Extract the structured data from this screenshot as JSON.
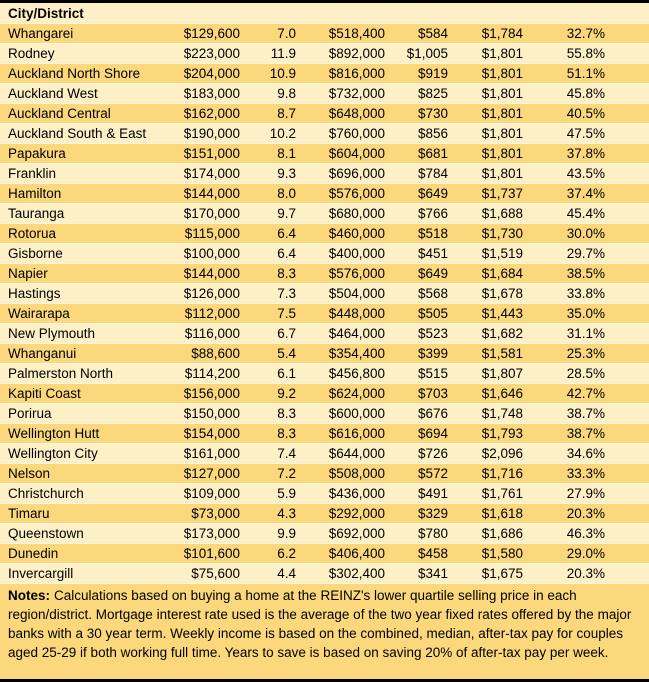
{
  "colors": {
    "row_gold": "#FBD87B",
    "row_cream": "#FDF0C6",
    "row_separator": "#FEF6DC",
    "border": "#000000",
    "text": "#000000"
  },
  "chart_data": {
    "type": "table",
    "title": "",
    "header": [
      "City/District",
      "",
      "",
      "",
      "",
      "",
      ""
    ],
    "rows": [
      [
        "Whangarei",
        "$129,600",
        "7.0",
        "$518,400",
        "$584",
        "$1,784",
        "32.7%"
      ],
      [
        "Rodney",
        "$223,000",
        "11.9",
        "$892,000",
        "$1,005",
        "$1,801",
        "55.8%"
      ],
      [
        "Auckland North Shore",
        "$204,000",
        "10.9",
        "$816,000",
        "$919",
        "$1,801",
        "51.1%"
      ],
      [
        "Auckland West",
        "$183,000",
        "9.8",
        "$732,000",
        "$825",
        "$1,801",
        "45.8%"
      ],
      [
        "Auckland Central",
        "$162,000",
        "8.7",
        "$648,000",
        "$730",
        "$1,801",
        "40.5%"
      ],
      [
        "Auckland South & East",
        "$190,000",
        "10.2",
        "$760,000",
        "$856",
        "$1,801",
        "47.5%"
      ],
      [
        "Papakura",
        "$151,000",
        "8.1",
        "$604,000",
        "$681",
        "$1,801",
        "37.8%"
      ],
      [
        "Franklin",
        "$174,000",
        "9.3",
        "$696,000",
        "$784",
        "$1,801",
        "43.5%"
      ],
      [
        "Hamilton",
        "$144,000",
        "8.0",
        "$576,000",
        "$649",
        "$1,737",
        "37.4%"
      ],
      [
        "Tauranga",
        "$170,000",
        "9.7",
        "$680,000",
        "$766",
        "$1,688",
        "45.4%"
      ],
      [
        "Rotorua",
        "$115,000",
        "6.4",
        "$460,000",
        "$518",
        "$1,730",
        "30.0%"
      ],
      [
        "Gisborne",
        "$100,000",
        "6.4",
        "$400,000",
        "$451",
        "$1,519",
        "29.7%"
      ],
      [
        "Napier",
        "$144,000",
        "8.3",
        "$576,000",
        "$649",
        "$1,684",
        "38.5%"
      ],
      [
        "Hastings",
        "$126,000",
        "7.3",
        "$504,000",
        "$568",
        "$1,678",
        "33.8%"
      ],
      [
        "Wairarapa",
        "$112,000",
        "7.5",
        "$448,000",
        "$505",
        "$1,443",
        "35.0%"
      ],
      [
        "New Plymouth",
        "$116,000",
        "6.7",
        "$464,000",
        "$523",
        "$1,682",
        "31.1%"
      ],
      [
        "Whanganui",
        "$88,600",
        "5.4",
        "$354,400",
        "$399",
        "$1,581",
        "25.3%"
      ],
      [
        "Palmerston North",
        "$114,200",
        "6.1",
        "$456,800",
        "$515",
        "$1,807",
        "28.5%"
      ],
      [
        "Kapiti Coast",
        "$156,000",
        "9.2",
        "$624,000",
        "$703",
        "$1,646",
        "42.7%"
      ],
      [
        "Porirua",
        "$150,000",
        "8.3",
        "$600,000",
        "$676",
        "$1,748",
        "38.7%"
      ],
      [
        "Wellington Hutt",
        "$154,000",
        "8.3",
        "$616,000",
        "$694",
        "$1,793",
        "38.7%"
      ],
      [
        "Wellington City",
        "$161,000",
        "7.4",
        "$644,000",
        "$726",
        "$2,096",
        "34.6%"
      ],
      [
        "Nelson",
        "$127,000",
        "7.2",
        "$508,000",
        "$572",
        "$1,716",
        "33.3%"
      ],
      [
        "Christchurch",
        "$109,000",
        "5.9",
        "$436,000",
        "$491",
        "$1,761",
        "27.9%"
      ],
      [
        "Timaru",
        "$73,000",
        "4.3",
        "$292,000",
        "$329",
        "$1,618",
        "20.3%"
      ],
      [
        "Queenstown",
        "$173,000",
        "9.9",
        "$692,000",
        "$780",
        "$1,686",
        "46.3%"
      ],
      [
        "Dunedin",
        "$101,600",
        "6.2",
        "$406,400",
        "$458",
        "$1,580",
        "29.0%"
      ],
      [
        "Invercargill",
        "$75,600",
        "4.4",
        "$302,400",
        "$341",
        "$1,675",
        "20.3%"
      ]
    ],
    "notes_label": "Notes:",
    "notes_text": "Calculations based on buying a home at the REINZ's lower quartile selling price in each region/district. Mortgage interest rate used is the average of the two year fixed rates offered by the major banks with a 30 year term. Weekly income is based on the combined, median, after-tax pay for couples aged 25-29 if both working full time. Years to save is based on saving 20% of after-tax pay per week."
  }
}
